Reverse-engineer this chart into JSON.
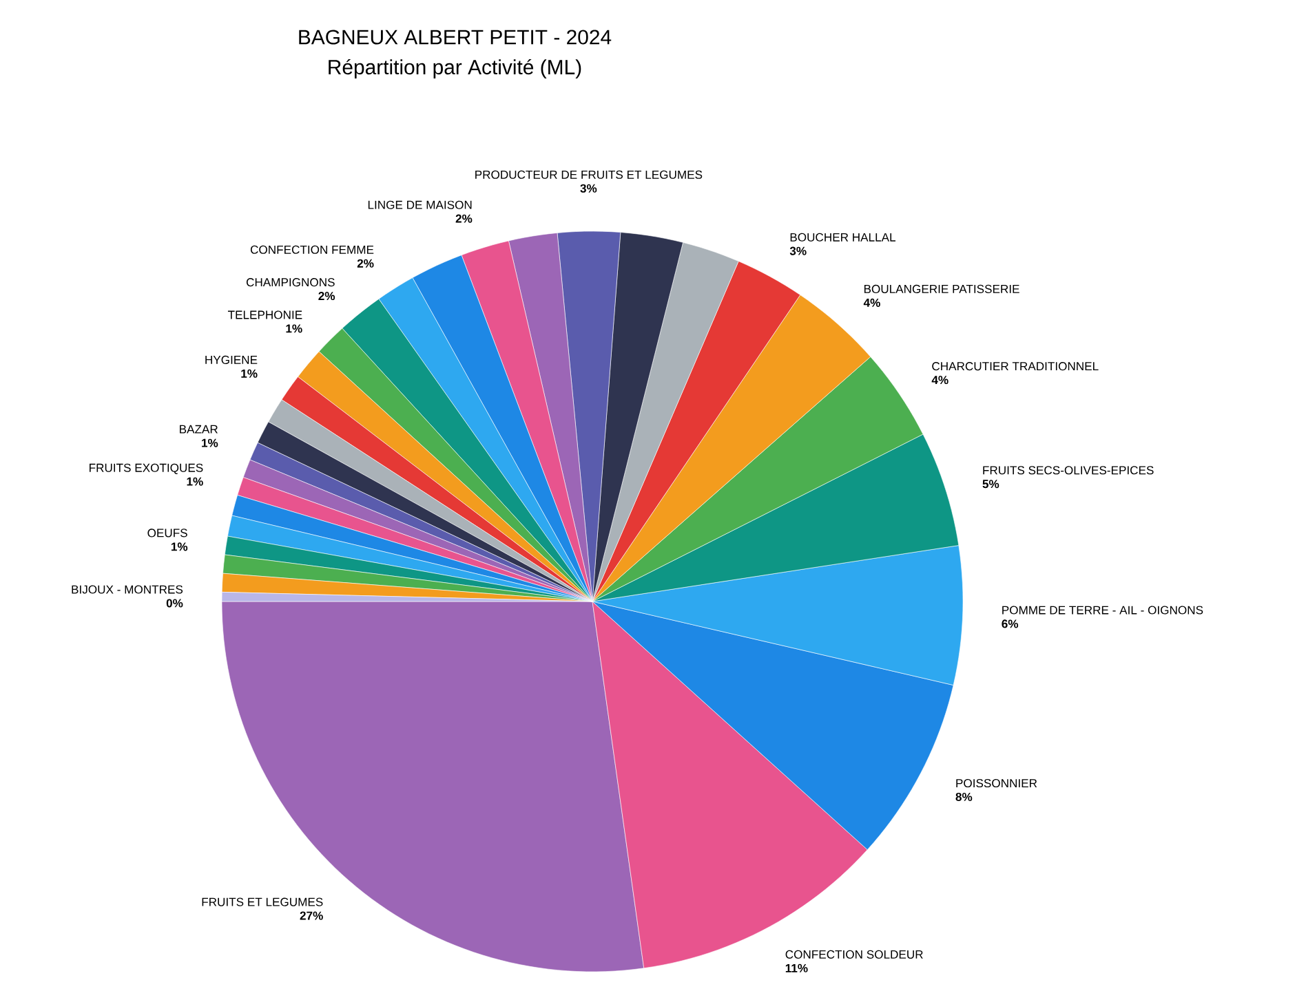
{
  "chart_data": {
    "type": "pie",
    "title": "BAGNEUX ALBERT PETIT - 2024",
    "subtitle": "Répartition par Activité (ML)",
    "categories": [
      "FRUITS ET LEGUMES",
      "CONFECTION SOLDEUR",
      "POISSONNIER",
      "POMME DE TERRE - AIL - OIGNONS",
      "FRUITS SECS-OLIVES-EPICES",
      "CHARCUTIER TRADITIONNEL",
      "BOULANGERIE PATISSERIE",
      "BOUCHER HALLAL",
      null,
      null,
      "PRODUCTEUR DE FRUITS ET LEGUMES",
      null,
      "LINGE DE MAISON",
      null,
      "CONFECTION FEMME",
      "CHAMPIGNONS",
      "TELEPHONIE",
      null,
      "HYGIENE",
      null,
      null,
      "BAZAR",
      null,
      "FRUITS EXOTIQUES",
      null,
      null,
      "OEUFS",
      null,
      null,
      "BIJOUX - MONTRES"
    ],
    "values": [
      27,
      11,
      8,
      6,
      5,
      4,
      4,
      3,
      2.5,
      2.7,
      2.7,
      2.1,
      2.1,
      2.3,
      1.7,
      2.0,
      1.4,
      1.4,
      1.2,
      1.1,
      1.0,
      0.8,
      0.8,
      0.8,
      0.9,
      0.9,
      0.8,
      0.8,
      0.8,
      0.4
    ],
    "value_labels": [
      "27%",
      "11%",
      "8%",
      "6%",
      "5%",
      "4%",
      "4%",
      "3%",
      null,
      null,
      "3%",
      null,
      "2%",
      null,
      "2%",
      "2%",
      "1%",
      null,
      "1%",
      null,
      null,
      "1%",
      null,
      "1%",
      null,
      null,
      "1%",
      null,
      null,
      "0%"
    ],
    "colors": [
      "#9c66b6",
      "#e8548e",
      "#1e88e5",
      "#2ea8f0",
      "#0e9685",
      "#4caf50",
      "#f39c1e",
      "#e53935",
      "#aab2b8",
      "#2f3450",
      "#5a5cad",
      "#9c66b6",
      "#e8548e",
      "#1e88e5",
      "#2ea8f0",
      "#0e9685",
      "#4caf50",
      "#f39c1e",
      "#e53935",
      "#aab2b8",
      "#2f3450",
      "#5a5cad",
      "#9c66b6",
      "#e8548e",
      "#1e88e5",
      "#2ea8f0",
      "#0e9685",
      "#4caf50",
      "#f39c1e",
      "#b9b6e8"
    ]
  }
}
